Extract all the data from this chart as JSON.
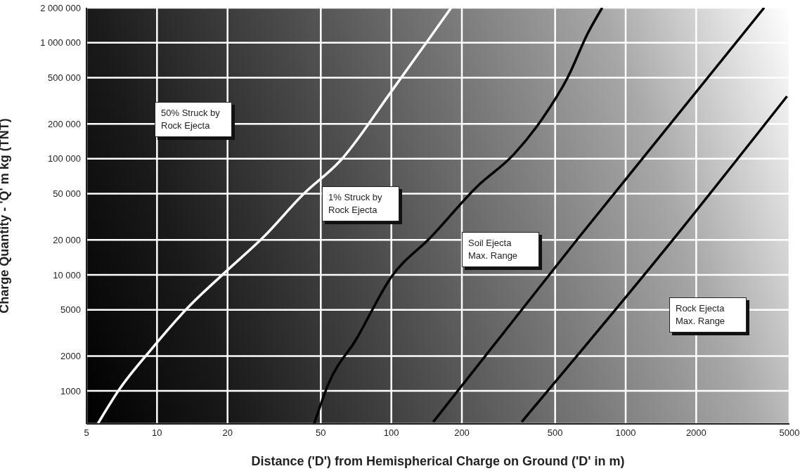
{
  "chart_data": {
    "type": "line",
    "xlabel": "Distance ('D') from Hemispherical Charge on Ground ('D' in m)",
    "ylabel": "Charge Quantity - 'Q' m kg (TNT)",
    "log": "xy",
    "grid": true,
    "marker": "none",
    "line_style": "solid",
    "xlim": [
      5,
      5000
    ],
    "xticks": [
      5,
      10,
      20,
      50,
      100,
      200,
      500,
      1000,
      2000,
      5000
    ],
    "ylim": [
      520,
      2000000
    ],
    "yticks": [
      1000,
      2000,
      5000,
      {
        "value": 10000,
        "label": "10 000"
      },
      {
        "value": 20000,
        "label": "20 000"
      },
      {
        "value": 50000,
        "label": "50 000"
      },
      {
        "value": 100000,
        "label": "100 000"
      },
      {
        "value": 200000,
        "label": "200 000"
      },
      {
        "value": 500000,
        "label": "500 000"
      },
      {
        "value": 1000000,
        "label": "1 000 000"
      },
      {
        "value": 2000000,
        "label": "2 000 000"
      }
    ],
    "series": [
      {
        "color": "#ffffff",
        "x": [
          5.6,
          6.9,
          9.5,
          13.5,
          19.3,
          28.7,
          41.9,
          60.8,
          100,
          140,
          180
        ],
        "values": [
          525,
          1030,
          2310,
          5190,
          10300,
          21500,
          49000,
          97000,
          380000,
          980000,
          2000000
        ]
      },
      {
        "color": "#000000",
        "x": [
          46.9,
          53.7,
          71,
          100,
          147,
          233,
          333,
          440,
          567,
          690,
          794
        ],
        "values": [
          525,
          1130,
          2810,
          9600,
          21000,
          58000,
          109000,
          220000,
          506000,
          1210000,
          2000000
        ]
      },
      {
        "color": "#000000",
        "x": [
          151,
          631,
          3900
        ],
        "values": [
          541,
          21000,
          2000000
        ]
      },
      {
        "color": "#000000",
        "x": [
          360,
          1700,
          4880
        ],
        "values": [
          541,
          23700,
          345000
        ]
      }
    ],
    "annotations": [
      "50% Struck by Rock Ejecta",
      "1% Struck by Rock Ejecta",
      "Soil Ejecta Max. Range",
      "Rock Ejecta Max. Range"
    ]
  }
}
